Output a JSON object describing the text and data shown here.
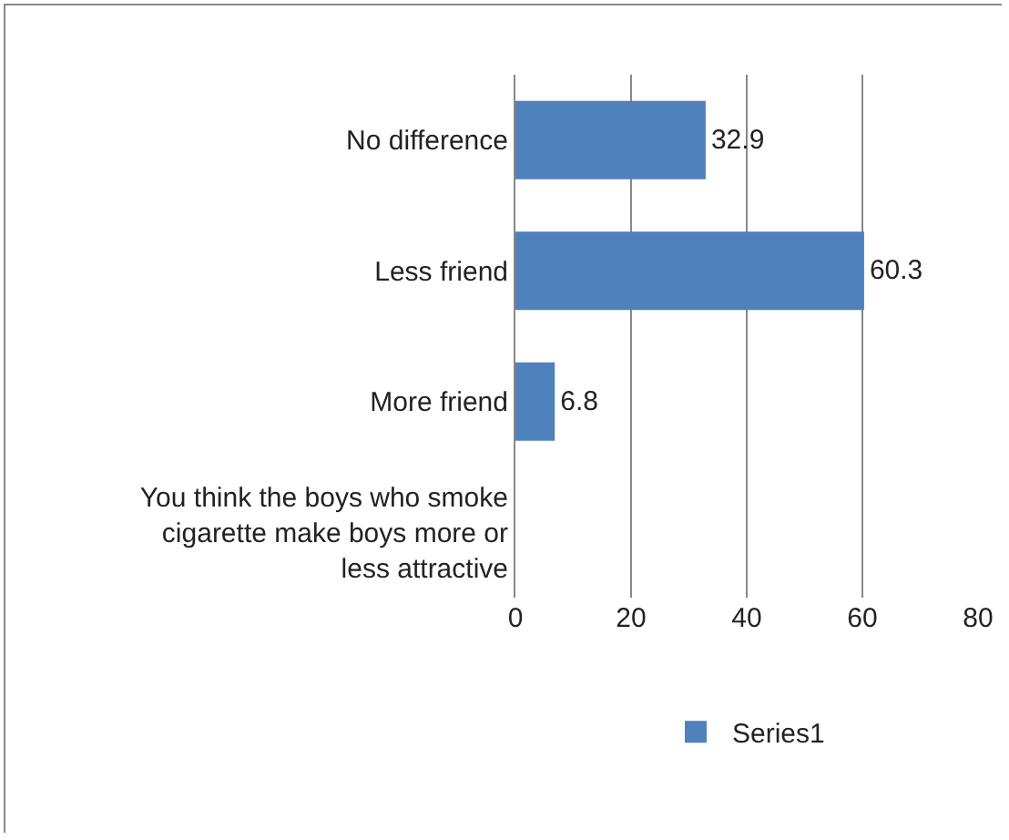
{
  "chart_data": {
    "type": "bar",
    "orientation": "horizontal",
    "categories": [
      "No difference",
      "Less friend",
      "More friend",
      "You think the boys who smoke cigarette make boys more or less attractive"
    ],
    "series": [
      {
        "name": "Series1",
        "color": "#4f81bd",
        "values": [
          32.9,
          60.3,
          6.8,
          null
        ]
      }
    ],
    "xlim": [
      0,
      80
    ],
    "xticks": [
      0,
      20,
      40,
      60,
      80
    ],
    "grid": "x",
    "legend": "bottom",
    "data_labels": true
  }
}
